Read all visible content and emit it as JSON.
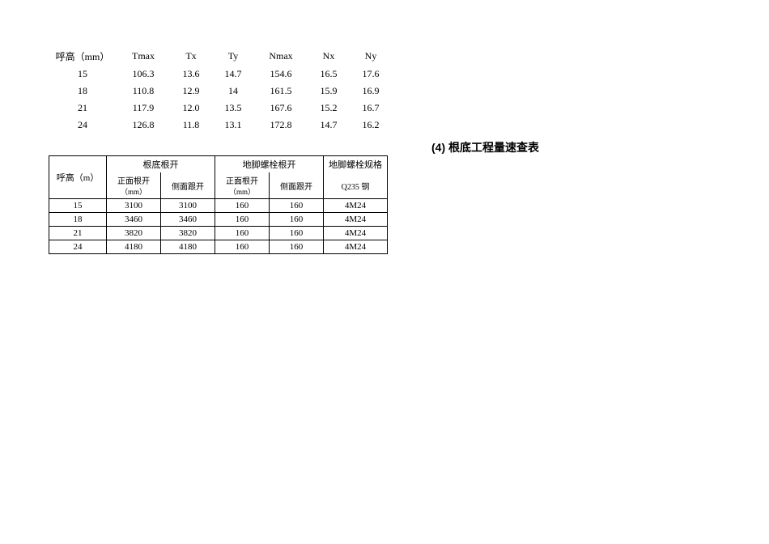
{
  "table1": {
    "headers": [
      "呼高（mm）",
      "Tmax",
      "Tx",
      "Ty",
      "Nmax",
      "Nx",
      "Ny"
    ],
    "rows": [
      [
        "15",
        "106.3",
        "13.6",
        "14.7",
        "154.6",
        "16.5",
        "17.6"
      ],
      [
        "18",
        "110.8",
        "12.9",
        "14",
        "161.5",
        "15.9",
        "16.9"
      ],
      [
        "21",
        "117.9",
        "12.0",
        "13.5",
        "167.6",
        "15.2",
        "16.7"
      ],
      [
        "24",
        "126.8",
        "11.8",
        "13.1",
        "172.8",
        "14.7",
        "16.2"
      ]
    ]
  },
  "section_title": "(4) 根底工程量速查表",
  "table2": {
    "col_height": "呼高（m）",
    "group1": "根底根开",
    "group1_unit": "（mm）",
    "group2": "地脚螺栓根开",
    "group2_unit": "（mm）",
    "col_spec_top": "地脚螺栓规格",
    "col_spec_sub": "Q235 钢",
    "sub_front": "正面根开",
    "sub_side": "侧面跟开",
    "rows": [
      [
        "15",
        "3100",
        "3100",
        "160",
        "160",
        "4M24"
      ],
      [
        "18",
        "3460",
        "3460",
        "160",
        "160",
        "4M24"
      ],
      [
        "21",
        "3820",
        "3820",
        "160",
        "160",
        "4M24"
      ],
      [
        "24",
        "4180",
        "4180",
        "160",
        "160",
        "4M24"
      ]
    ]
  }
}
